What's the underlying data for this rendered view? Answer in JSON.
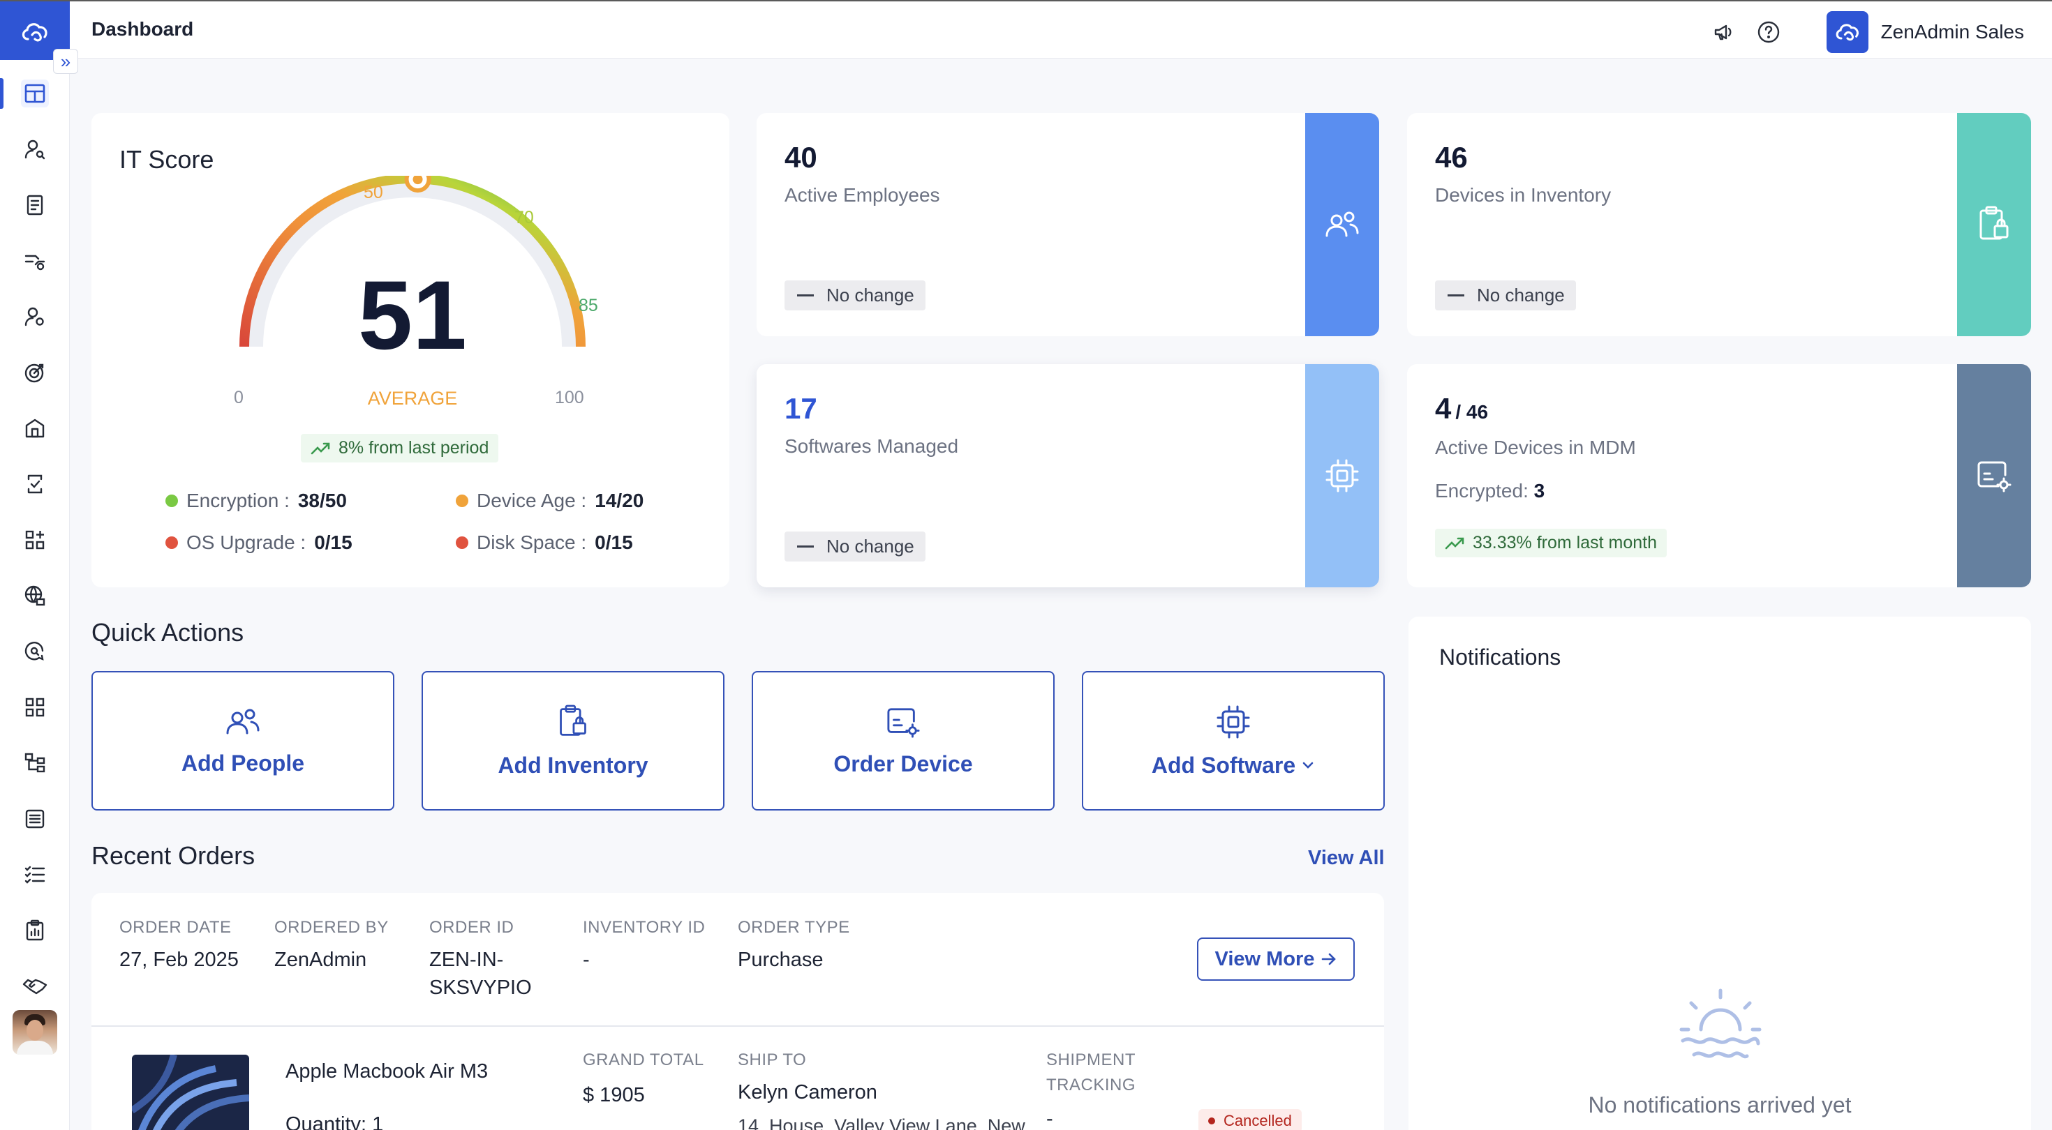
{
  "header": {
    "title": "Dashboard",
    "org_name": "ZenAdmin Sales"
  },
  "colors": {
    "brand": "#2f55d4",
    "employees_stripe": "#5a8ef0",
    "inventory_stripe": "#62cdbf",
    "software_stripe": "#93c0f7",
    "mdm_stripe": "#65809f"
  },
  "sidebar": {
    "items": [
      {
        "name": "dashboard-icon",
        "active": true
      },
      {
        "name": "people-icon"
      },
      {
        "name": "document-icon"
      },
      {
        "name": "workflow-icon"
      },
      {
        "name": "user-settings-icon"
      },
      {
        "name": "target-icon"
      },
      {
        "name": "building-icon"
      },
      {
        "name": "scan-icon"
      },
      {
        "name": "apps-icon"
      },
      {
        "name": "globe-lock-icon"
      },
      {
        "name": "chat-search-icon"
      },
      {
        "name": "widgets-icon"
      },
      {
        "name": "hierarchy-icon"
      },
      {
        "name": "list-icon"
      },
      {
        "name": "checklist-icon"
      },
      {
        "name": "report-icon"
      },
      {
        "name": "handshake-icon"
      },
      {
        "name": "support-icon"
      }
    ]
  },
  "it_score": {
    "title": "IT Score",
    "score": "51",
    "score_value": 51,
    "rating": "AVERAGE",
    "min_label": "0",
    "max_label": "100",
    "ticks": [
      "50",
      "70",
      "85"
    ],
    "trend": "8% from last period",
    "metrics": [
      {
        "label": "Encryption :",
        "value": "38/50",
        "color": "#7ac943"
      },
      {
        "label": "Device Age :",
        "value": "14/20",
        "color": "#f0a33a"
      },
      {
        "label": "OS Upgrade :",
        "value": "0/15",
        "color": "#e0533f"
      },
      {
        "label": "Disk Space :",
        "value": "0/15",
        "color": "#e0533f"
      }
    ]
  },
  "stats": {
    "employees": {
      "value": "40",
      "label": "Active Employees",
      "change": "No change"
    },
    "inventory": {
      "value": "46",
      "label": "Devices in Inventory",
      "change": "No change"
    },
    "software": {
      "value": "17",
      "label": "Softwares Managed",
      "change": "No change"
    },
    "mdm": {
      "value": "4",
      "total": "/ 46",
      "label": "Active Devices in MDM",
      "encrypted_label": "Encrypted:",
      "encrypted_value": "3",
      "trend": "33.33% from last month"
    }
  },
  "quick_actions": {
    "title": "Quick Actions",
    "items": [
      "Add People",
      "Add Inventory",
      "Order Device",
      "Add Software"
    ]
  },
  "recent_orders": {
    "title": "Recent Orders",
    "view_all": "View All",
    "headers": [
      "ORDER DATE",
      "ORDERED BY",
      "ORDER ID",
      "INVENTORY ID",
      "ORDER TYPE"
    ],
    "order": {
      "date": "27, Feb 2025",
      "ordered_by": "ZenAdmin",
      "order_id_line1": "ZEN-IN-",
      "order_id_line2": "SKSVYPIO",
      "inventory_id": "-",
      "type": "Purchase",
      "view_more": "View More"
    },
    "item": {
      "name": "Apple Macbook Air M3",
      "quantity": "Quantity: 1",
      "grand_total_label": "GRAND TOTAL",
      "grand_total": "$ 1905",
      "ship_to_label": "SHIP TO",
      "ship_to_name": "Kelyn Cameron",
      "ship_to_address": "14, House, Valley View Lane, New",
      "tracking_label_1": "SHIPMENT",
      "tracking_label_2": "TRACKING",
      "tracking_value": "-",
      "status": "Cancelled"
    }
  },
  "notifications": {
    "title": "Notifications",
    "empty": "No notifications arrived yet"
  }
}
